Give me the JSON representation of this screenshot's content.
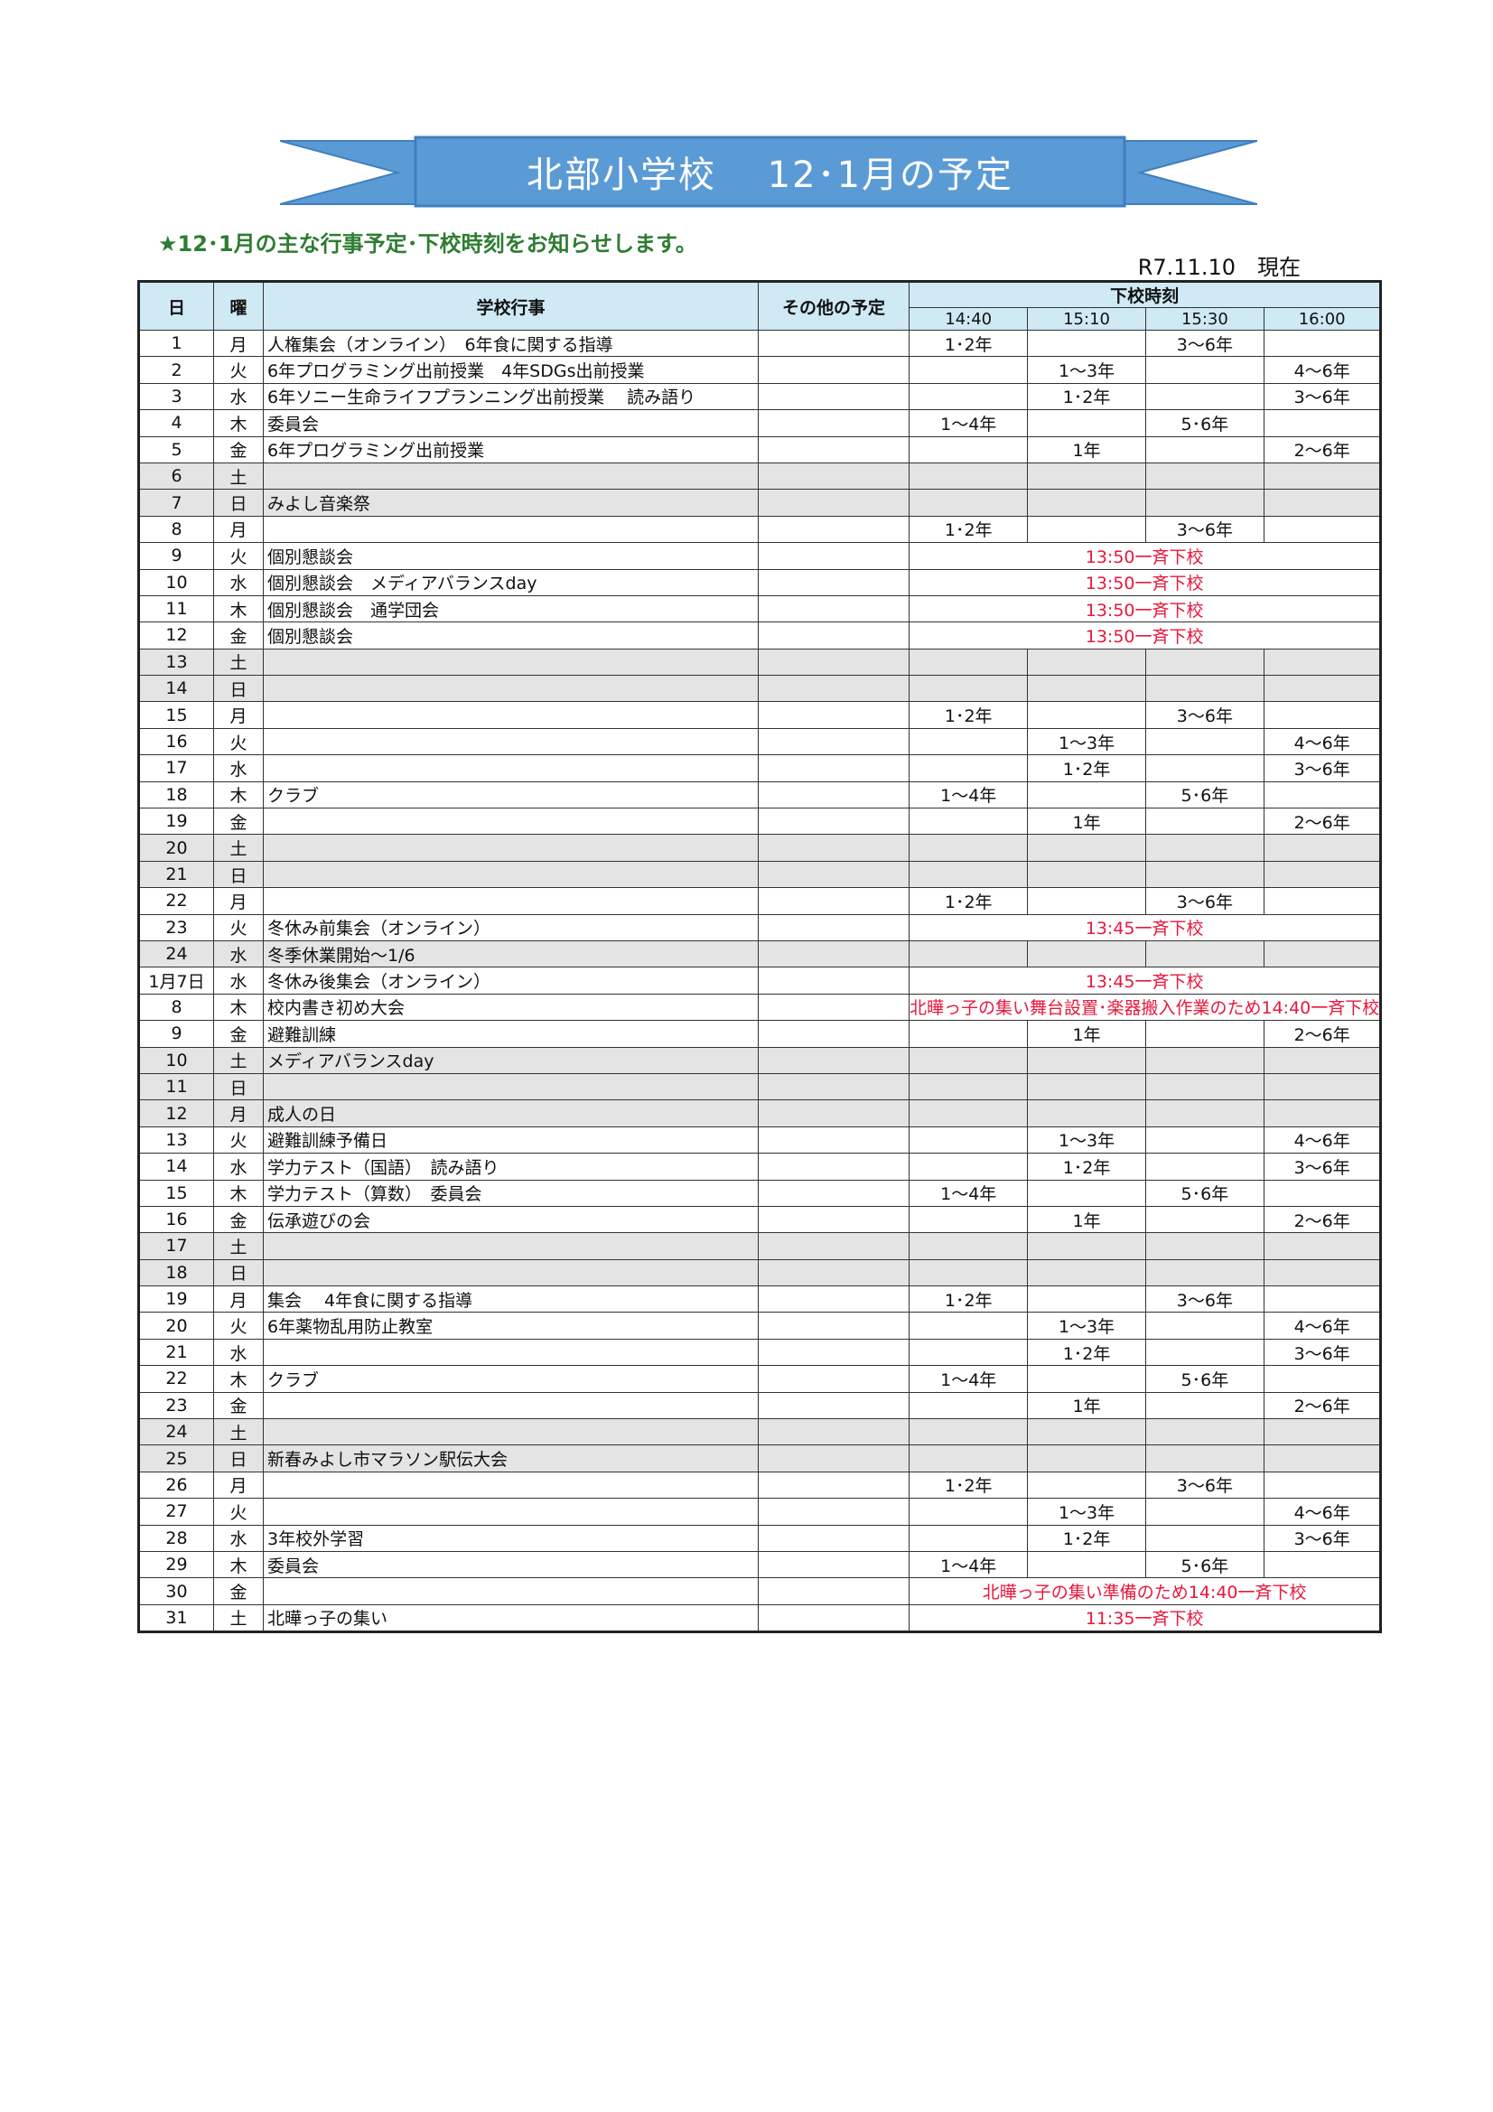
{
  "colors": {
    "ribbon": "#5b9bd5",
    "header_bg": "#cfe9f5",
    "weekend_bg": "#e4e4e4",
    "notice_red": "#e8173c",
    "subtitle_green": "#2e7d32"
  },
  "header": {
    "title": "北部小学校　 12･1月の予定",
    "subtitle": "★12･1月の主な行事予定･下校時刻をお知らせします。",
    "as_of": "R7.11.10　現在"
  },
  "table": {
    "columns": {
      "day": "日",
      "weekday": "曜",
      "events": "学校行事",
      "other": "その他の予定",
      "dismissal": "下校時刻",
      "times": [
        "14:40",
        "15:10",
        "15:30",
        "16:00"
      ]
    },
    "rows": [
      {
        "d": "1",
        "w": "月",
        "e": "人権集会（オンライン）　6年食に関する指導",
        "t": [
          "1･2年",
          "",
          "3～6年",
          ""
        ]
      },
      {
        "d": "2",
        "w": "火",
        "e": "6年プログラミング出前授業　4年SDGs出前授業",
        "t": [
          "",
          "1～3年",
          "",
          "4～6年"
        ]
      },
      {
        "d": "3",
        "w": "水",
        "e": "6年ソニー生命ライフプランニング出前授業　 読み語り",
        "t": [
          "",
          "1･2年",
          "",
          "3～6年"
        ]
      },
      {
        "d": "4",
        "w": "木",
        "e": "委員会",
        "t": [
          "1～4年",
          "",
          "5･6年",
          ""
        ]
      },
      {
        "d": "5",
        "w": "金",
        "e": "6年プログラミング出前授業",
        "t": [
          "",
          "1年",
          "",
          "2～6年"
        ]
      },
      {
        "d": "6",
        "w": "土",
        "e": "",
        "gray": true,
        "t": [
          "",
          "",
          "",
          ""
        ]
      },
      {
        "d": "7",
        "w": "日",
        "e": "みよし音楽祭",
        "gray": true,
        "t": [
          "",
          "",
          "",
          ""
        ]
      },
      {
        "d": "8",
        "w": "月",
        "e": "",
        "t": [
          "1･2年",
          "",
          "3～6年",
          ""
        ]
      },
      {
        "d": "9",
        "w": "火",
        "e": "個別懇談会",
        "notice": "13:50一斉下校"
      },
      {
        "d": "10",
        "w": "水",
        "e": "個別懇談会　メディアバランスday",
        "notice": "13:50一斉下校"
      },
      {
        "d": "11",
        "w": "木",
        "e": "個別懇談会　通学団会",
        "notice": "13:50一斉下校"
      },
      {
        "d": "12",
        "w": "金",
        "e": "個別懇談会",
        "notice": "13:50一斉下校"
      },
      {
        "d": "13",
        "w": "土",
        "e": "",
        "gray": true,
        "t": [
          "",
          "",
          "",
          ""
        ]
      },
      {
        "d": "14",
        "w": "日",
        "e": "",
        "gray": true,
        "t": [
          "",
          "",
          "",
          ""
        ]
      },
      {
        "d": "15",
        "w": "月",
        "e": "",
        "t": [
          "1･2年",
          "",
          "3～6年",
          ""
        ]
      },
      {
        "d": "16",
        "w": "火",
        "e": "",
        "t": [
          "",
          "1～3年",
          "",
          "4～6年"
        ]
      },
      {
        "d": "17",
        "w": "水",
        "e": "",
        "t": [
          "",
          "1･2年",
          "",
          "3～6年"
        ]
      },
      {
        "d": "18",
        "w": "木",
        "e": "クラブ",
        "t": [
          "1～4年",
          "",
          "5･6年",
          ""
        ]
      },
      {
        "d": "19",
        "w": "金",
        "e": "",
        "t": [
          "",
          "1年",
          "",
          "2～6年"
        ]
      },
      {
        "d": "20",
        "w": "土",
        "e": "",
        "gray": true,
        "t": [
          "",
          "",
          "",
          ""
        ]
      },
      {
        "d": "21",
        "w": "日",
        "e": "",
        "gray": true,
        "t": [
          "",
          "",
          "",
          ""
        ]
      },
      {
        "d": "22",
        "w": "月",
        "e": "",
        "t": [
          "1･2年",
          "",
          "3～6年",
          ""
        ]
      },
      {
        "d": "23",
        "w": "火",
        "e": "冬休み前集会（オンライン）",
        "notice": "13:45一斉下校"
      },
      {
        "d": "24",
        "w": "水",
        "e": "冬季休業開始～1/6",
        "gray": true,
        "t": [
          "",
          "",
          "",
          ""
        ]
      },
      {
        "d": "1月7日",
        "w": "水",
        "e": "冬休み後集会（オンライン）",
        "notice": "13:45一斉下校",
        "split": true
      },
      {
        "d": "8",
        "w": "木",
        "e": "校内書き初め大会",
        "notice": "北曄っ子の集い舞台設置･楽器搬入作業のため14:40一斉下校",
        "small": true
      },
      {
        "d": "9",
        "w": "金",
        "e": "避難訓練",
        "t": [
          "",
          "1年",
          "",
          "2～6年"
        ]
      },
      {
        "d": "10",
        "w": "土",
        "e": "メディアバランスday",
        "gray": true,
        "t": [
          "",
          "",
          "",
          ""
        ]
      },
      {
        "d": "11",
        "w": "日",
        "e": "",
        "gray": true,
        "t": [
          "",
          "",
          "",
          ""
        ]
      },
      {
        "d": "12",
        "w": "月",
        "e": "成人の日",
        "gray": true,
        "t": [
          "",
          "",
          "",
          ""
        ]
      },
      {
        "d": "13",
        "w": "火",
        "e": "避難訓練予備日",
        "t": [
          "",
          "1～3年",
          "",
          "4～6年"
        ]
      },
      {
        "d": "14",
        "w": "水",
        "e": "学力テスト（国語）　読み語り",
        "t": [
          "",
          "1･2年",
          "",
          "3～6年"
        ]
      },
      {
        "d": "15",
        "w": "木",
        "e": "学力テスト（算数）　委員会",
        "t": [
          "1～4年",
          "",
          "5･6年",
          ""
        ]
      },
      {
        "d": "16",
        "w": "金",
        "e": "伝承遊びの会",
        "t": [
          "",
          "1年",
          "",
          "2～6年"
        ]
      },
      {
        "d": "17",
        "w": "土",
        "e": "",
        "gray": true,
        "t": [
          "",
          "",
          "",
          ""
        ]
      },
      {
        "d": "18",
        "w": "日",
        "e": "",
        "gray": true,
        "t": [
          "",
          "",
          "",
          ""
        ]
      },
      {
        "d": "19",
        "w": "月",
        "e": "集会　 4年食に関する指導",
        "t": [
          "1･2年",
          "",
          "3～6年",
          ""
        ]
      },
      {
        "d": "20",
        "w": "火",
        "e": "6年薬物乱用防止教室",
        "t": [
          "",
          "1～3年",
          "",
          "4～6年"
        ]
      },
      {
        "d": "21",
        "w": "水",
        "e": "",
        "t": [
          "",
          "1･2年",
          "",
          "3～6年"
        ]
      },
      {
        "d": "22",
        "w": "木",
        "e": "クラブ",
        "t": [
          "1～4年",
          "",
          "5･6年",
          ""
        ]
      },
      {
        "d": "23",
        "w": "金",
        "e": "",
        "t": [
          "",
          "1年",
          "",
          "2～6年"
        ]
      },
      {
        "d": "24",
        "w": "土",
        "e": "",
        "gray": true,
        "t": [
          "",
          "",
          "",
          ""
        ]
      },
      {
        "d": "25",
        "w": "日",
        "e": "新春みよし市マラソン駅伝大会",
        "gray": true,
        "t": [
          "",
          "",
          "",
          ""
        ]
      },
      {
        "d": "26",
        "w": "月",
        "e": "",
        "t": [
          "1･2年",
          "",
          "3～6年",
          ""
        ]
      },
      {
        "d": "27",
        "w": "火",
        "e": "",
        "t": [
          "",
          "1～3年",
          "",
          "4～6年"
        ]
      },
      {
        "d": "28",
        "w": "水",
        "e": "3年校外学習",
        "t": [
          "",
          "1･2年",
          "",
          "3～6年"
        ]
      },
      {
        "d": "29",
        "w": "木",
        "e": "委員会",
        "t": [
          "1～4年",
          "",
          "5･6年",
          ""
        ]
      },
      {
        "d": "30",
        "w": "金",
        "e": "",
        "notice": "北曄っ子の集い準備のため14:40一斉下校"
      },
      {
        "d": "31",
        "w": "土",
        "e": "北曄っ子の集い",
        "notice": "11:35一斉下校"
      }
    ]
  }
}
